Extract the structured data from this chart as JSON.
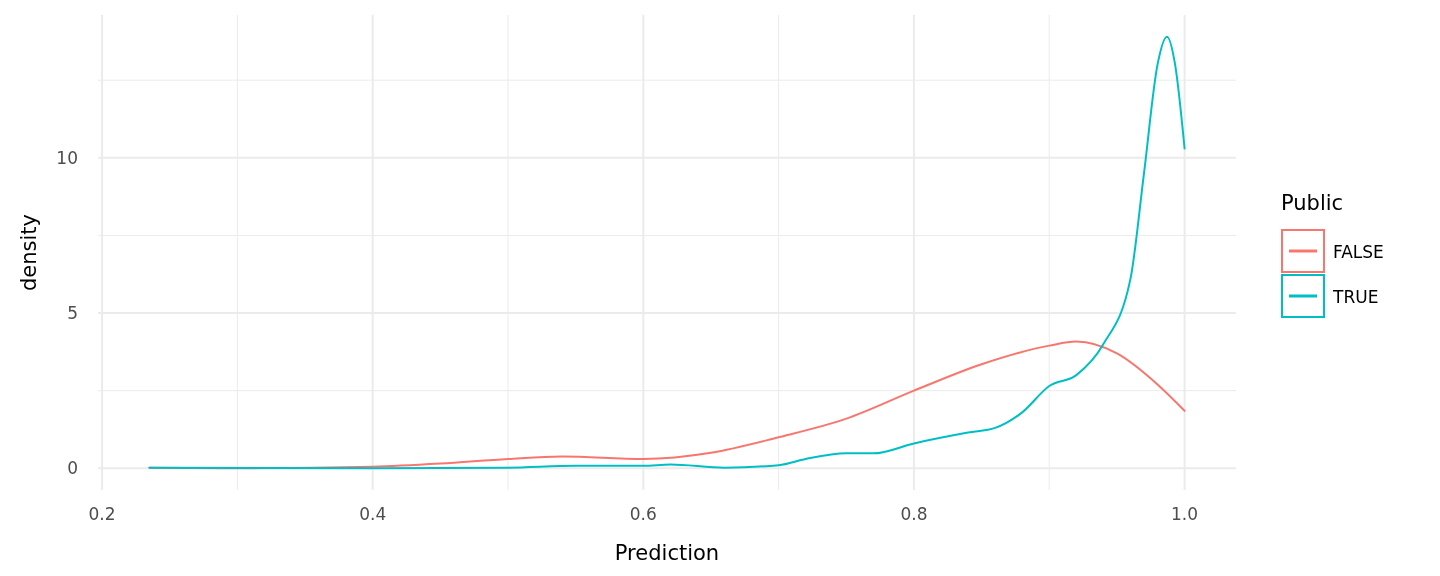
{
  "chart_data": {
    "type": "line",
    "xlabel": "Prediction",
    "ylabel": "density",
    "legend_title": "Public",
    "legend": "right",
    "grid": true,
    "marker": "none",
    "line_style": "solid",
    "xlim": [
      0.197,
      1.038
    ],
    "ylim": [
      -0.7,
      14.6
    ],
    "xticks": [
      0.2,
      {
        "value": 0.3,
        "label": null
      },
      0.4,
      {
        "value": 0.5,
        "label": null
      },
      0.6,
      {
        "value": 0.7,
        "label": null
      },
      0.8,
      {
        "value": 0.9,
        "label": null
      },
      {
        "value": 1.0,
        "label": "1.0"
      }
    ],
    "yticks": [
      0,
      {
        "value": 2.5,
        "label": null
      },
      5,
      {
        "value": 7.5,
        "label": null
      },
      10,
      {
        "value": 12.5,
        "label": null
      }
    ],
    "series": [
      {
        "name": "FALSE",
        "color": "#f8766d",
        "x": [
          0.235,
          0.3,
          0.4,
          0.45,
          0.5,
          0.54,
          0.6,
          0.65,
          0.7,
          0.75,
          0.8,
          0.85,
          0.9,
          0.92,
          0.95,
          0.98,
          1.0
        ],
        "values": [
          0.02,
          0.0,
          0.05,
          0.15,
          0.3,
          0.38,
          0.3,
          0.5,
          1.0,
          1.6,
          2.5,
          3.35,
          3.95,
          4.08,
          3.7,
          2.7,
          1.85
        ]
      },
      {
        "name": "TRUE",
        "color": "#00bfc4",
        "x": [
          0.235,
          0.4,
          0.5,
          0.55,
          0.6,
          0.62,
          0.66,
          0.7,
          0.72,
          0.75,
          0.77,
          0.8,
          0.84,
          0.86,
          0.88,
          0.9,
          0.92,
          0.94,
          0.96,
          0.97,
          0.98,
          0.987,
          0.993,
          1.0
        ],
        "values": [
          0.02,
          0.0,
          0.02,
          0.08,
          0.08,
          0.12,
          0.02,
          0.1,
          0.3,
          0.48,
          0.48,
          0.8,
          1.15,
          1.3,
          1.8,
          2.65,
          3.0,
          4.0,
          6.1,
          9.5,
          13.0,
          13.9,
          13.0,
          10.3
        ]
      }
    ]
  }
}
